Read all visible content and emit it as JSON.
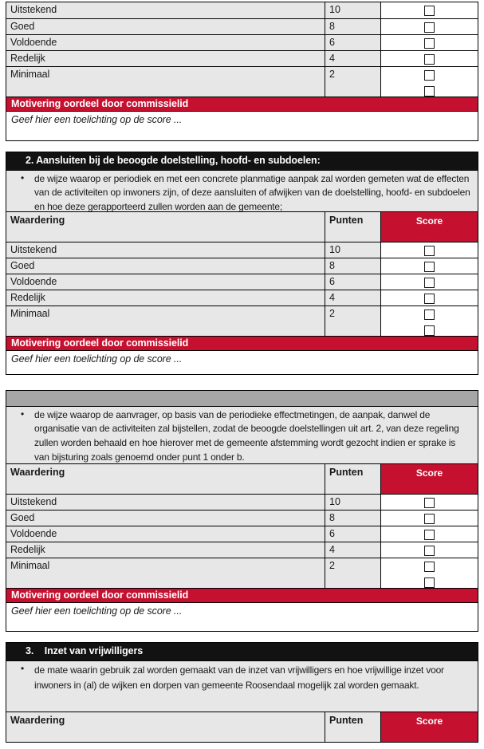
{
  "colors": {
    "accent_red": "#c5112f",
    "row_gray": "#e8e7e7",
    "bar_gray": "#a6a6a6",
    "bar_black": "#121212"
  },
  "bullet_char": "•",
  "rating": {
    "header": {
      "waardering": "Waardering",
      "punten": "Punten",
      "score": "Score"
    },
    "rows": [
      {
        "label": "Uitstekend",
        "points": "10"
      },
      {
        "label": "Goed",
        "points": "8"
      },
      {
        "label": "Voldoende",
        "points": "6"
      },
      {
        "label": "Redelijk",
        "points": "4"
      },
      {
        "label": "Minimaal",
        "points": "2"
      }
    ],
    "motivation_header": "Motivering oordeel door commissielid",
    "motivation_placeholder": "Geef hier een toelichting op de score ..."
  },
  "sections": {
    "two": {
      "title": "2. Aansluiten bij de beoogde doelstelling, hoofd- en subdoelen:",
      "bullet": "de wijze waarop er periodiek en met een concrete planmatige aanpak zal worden gemeten wat de effecten van de activiteiten op inwoners zijn, of deze aansluiten of afwijken van de doelstelling, hoofd- en subdoelen en hoe deze gerapporteerd zullen worden aan de gemeente;"
    },
    "three": {
      "bullet": "de wijze waarop de aanvrager, op basis van de periodieke effectmetingen, de aanpak, danwel de organisatie van de activiteiten zal bijstellen, zodat de beoogde doelstellingen uit art. 2, van deze regeling zullen worden behaald en hoe hierover met de gemeente afstemming wordt gezocht indien er sprake is van bijsturing zoals genoemd onder punt 1 onder b."
    },
    "four": {
      "title": "3.    Inzet van vrijwilligers",
      "bullet": "de mate waarin gebruik zal worden gemaakt van de inzet van vrijwilligers en hoe vrijwillige inzet voor inwoners in (al) de wijken en dorpen van gemeente Roosendaal mogelijk zal worden gemaakt."
    }
  }
}
